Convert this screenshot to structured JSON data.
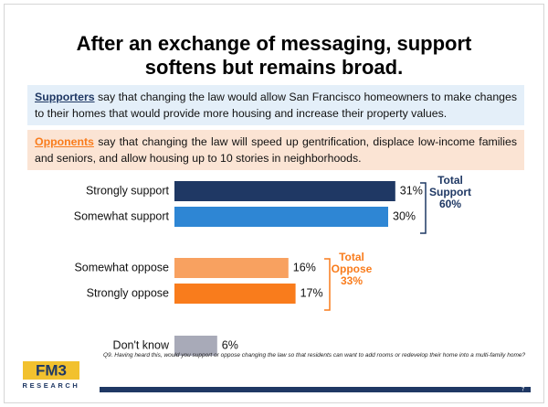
{
  "title": [
    "After an exchange of messaging, support",
    "softens but remains broad."
  ],
  "supporters": {
    "lead": "Supporters",
    "text": " say that changing the law would allow San Francisco homeowners to make changes to their homes that would provide more housing and increase their property values."
  },
  "opponents": {
    "lead": "Opponents",
    "text": " say that changing the law will speed up gentrification, displace low-income families and seniors, and allow housing up to 10 stories in neighborhoods."
  },
  "chart_data": {
    "type": "bar",
    "orientation": "horizontal",
    "categories": [
      "Strongly support",
      "Somewhat support",
      "Somewhat oppose",
      "Strongly oppose",
      "Don't know"
    ],
    "values": [
      31,
      30,
      16,
      17,
      6
    ],
    "value_labels": [
      "31%",
      "30%",
      "16%",
      "17%",
      "6%"
    ],
    "colors": [
      "#1f3864",
      "#2e86d4",
      "#f8a160",
      "#f97c1c",
      "#a8aab8"
    ],
    "annotations": [
      {
        "lines": [
          "Total",
          "Support",
          "60%"
        ],
        "color": "#1f3864"
      },
      {
        "lines": [
          "Total",
          "Oppose",
          "33%"
        ],
        "color": "#f97c1c"
      }
    ]
  },
  "footnote": "Q9. Having heard this, would you support or oppose changing the law so that residents can want to add rooms or redevelop their home into a multi-family home?",
  "logo": {
    "name": "FM3",
    "sub": "RESEARCH"
  },
  "page_number": "7"
}
